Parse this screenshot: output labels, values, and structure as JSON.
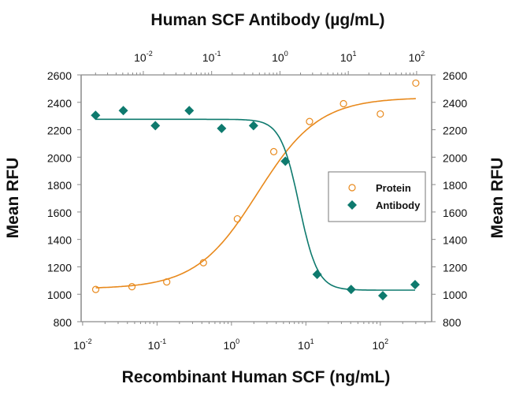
{
  "chart_data": {
    "type": "scatter",
    "title": "Human SCF Antibody (µg/mL)",
    "xlabel": "Recombinant Human SCF (ng/mL)",
    "ylabel": "Mean RFU",
    "ylabel_right": "Mean RFU",
    "x_scale": "log",
    "x_bottom_ticks": [
      {
        "base": "10",
        "exp": "-2",
        "log": -2
      },
      {
        "base": "10",
        "exp": "-1",
        "log": -1
      },
      {
        "base": "10",
        "exp": "0",
        "log": 0
      },
      {
        "base": "10",
        "exp": "1",
        "log": 1
      },
      {
        "base": "10",
        "exp": "2",
        "log": 2
      }
    ],
    "x_top_ticks": [
      {
        "base": "10",
        "exp": "-2",
        "log": -2
      },
      {
        "base": "10",
        "exp": "-1",
        "log": -1
      },
      {
        "base": "10",
        "exp": "0",
        "log": 0
      },
      {
        "base": "10",
        "exp": "1",
        "log": 1
      },
      {
        "base": "10",
        "exp": "2",
        "log": 2
      }
    ],
    "x_bottom_range_log": [
      -2.02,
      2.69
    ],
    "x_top_range_log": [
      -2.91,
      2.22
    ],
    "ylim": [
      800,
      2600
    ],
    "y_ticks": [
      "800",
      "1000",
      "1200",
      "1400",
      "1600",
      "1800",
      "2000",
      "2200",
      "2400",
      "2600"
    ],
    "legend": {
      "placement": "center-right",
      "entries": [
        "Protein",
        "Antibody"
      ]
    },
    "colors": {
      "protein": "#E8891C",
      "antibody": "#0E7A6E",
      "axis": "#8a8a8a"
    },
    "series": [
      {
        "name": "Protein",
        "axis": "bottom",
        "marker": "open-circle",
        "x_ng_per_mL": [
          0.015,
          0.046,
          0.135,
          0.42,
          1.2,
          3.7,
          11.2,
          32,
          100,
          300
        ],
        "y": [
          1035,
          1055,
          1090,
          1230,
          1550,
          2040,
          2260,
          2390,
          2315,
          2540
        ],
        "fit": {
          "bottom": 1040,
          "top": 2435,
          "log_ec50": 0.35,
          "hill": 1.05
        }
      },
      {
        "name": "Antibody",
        "axis": "top",
        "marker": "filled-diamond",
        "x_ug_per_mL": [
          0.002,
          0.0051,
          0.015,
          0.047,
          0.14,
          0.41,
          1.2,
          3.5,
          11,
          32,
          95
        ],
        "y": [
          2305,
          2340,
          2230,
          2340,
          2210,
          2230,
          1970,
          1145,
          1035,
          990,
          1070
        ],
        "fit": {
          "bottom": 1030,
          "top": 2276,
          "log_ec50": 0.28,
          "hill": -3.2
        }
      }
    ]
  }
}
